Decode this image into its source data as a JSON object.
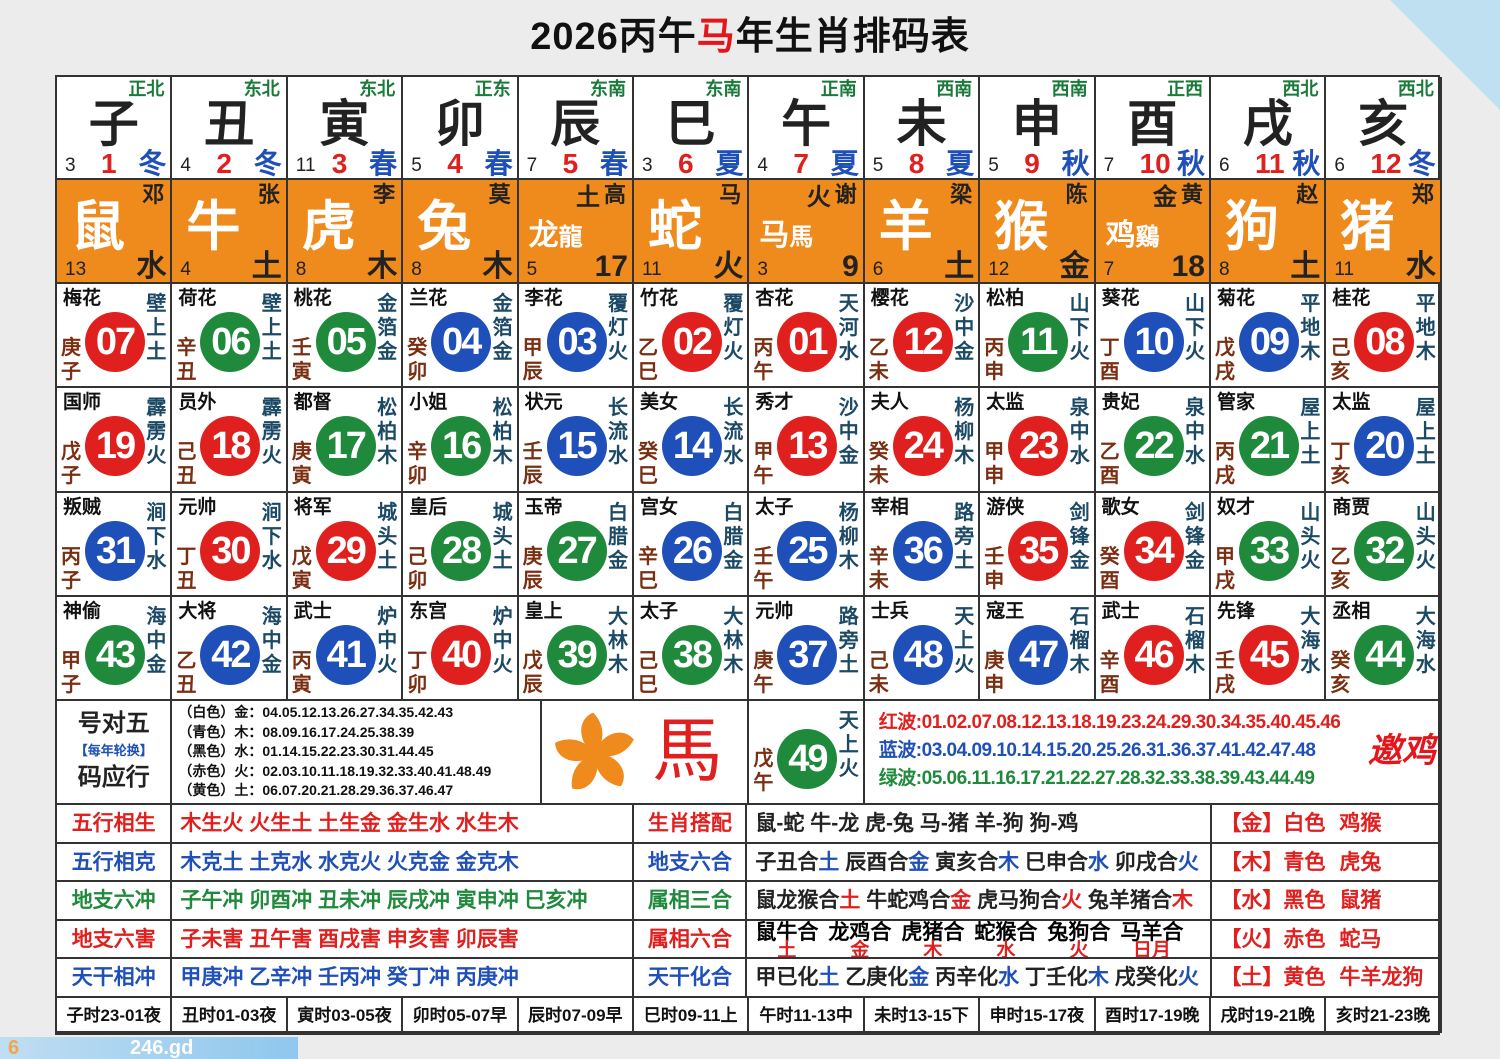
{
  "title": {
    "pre": "2026丙午",
    "hl": "马",
    "post": "年生肖排码表"
  },
  "colors": {
    "red": "#e0201f",
    "green": "#1f8a3c",
    "blue": "#1f4fb8",
    "orange": "#ef8a1c"
  },
  "branches": [
    {
      "br": "子",
      "dir": "正北",
      "ln": "3",
      "mo": "1",
      "se": "冬"
    },
    {
      "br": "丑",
      "dir": "东北",
      "ln": "4",
      "mo": "2",
      "se": "冬"
    },
    {
      "br": "寅",
      "dir": "东北",
      "ln": "11",
      "mo": "3",
      "se": "春"
    },
    {
      "br": "卯",
      "dir": "正东",
      "ln": "5",
      "mo": "4",
      "se": "春"
    },
    {
      "br": "辰",
      "dir": "东南",
      "ln": "7",
      "mo": "5",
      "se": "春"
    },
    {
      "br": "巳",
      "dir": "东南",
      "ln": "3",
      "mo": "6",
      "se": "夏"
    },
    {
      "br": "午",
      "dir": "正南",
      "ln": "4",
      "mo": "7",
      "se": "夏"
    },
    {
      "br": "未",
      "dir": "西南",
      "ln": "5",
      "mo": "8",
      "se": "夏"
    },
    {
      "br": "申",
      "dir": "西南",
      "ln": "5",
      "mo": "9",
      "se": "秋"
    },
    {
      "br": "酉",
      "dir": "正西",
      "ln": "7",
      "mo": "10",
      "se": "秋"
    },
    {
      "br": "戌",
      "dir": "西北",
      "ln": "6",
      "mo": "11",
      "se": "秋"
    },
    {
      "br": "亥",
      "dir": "西北",
      "ln": "6",
      "mo": "12",
      "se": "冬"
    }
  ],
  "zodiac": [
    {
      "an": "鼠",
      "sn": "邓",
      "ln": "13",
      "rv": "水"
    },
    {
      "an": "牛",
      "sn": "张",
      "ln": "4",
      "rv": "土"
    },
    {
      "an": "虎",
      "sn": "李",
      "ln": "8",
      "rv": "木"
    },
    {
      "an": "兔",
      "sn": "莫",
      "ln": "8",
      "rv": "木"
    },
    {
      "an": "龙",
      "an2": "龍",
      "sn": "高",
      "ex": "土",
      "ln": "5",
      "rv": "17"
    },
    {
      "an": "蛇",
      "sn": "马",
      "ln": "11",
      "rv": "火"
    },
    {
      "an": "马",
      "an2": "馬",
      "sn": "谢",
      "ex": "火",
      "ln": "3",
      "rv": "9"
    },
    {
      "an": "羊",
      "sn": "梁",
      "ln": "6",
      "rv": "土"
    },
    {
      "an": "猴",
      "sn": "陈",
      "ln": "12",
      "rv": "金"
    },
    {
      "an": "鸡",
      "an2": "鷄",
      "sn": "黄",
      "ex": "金",
      "ln": "7",
      "rv": "18"
    },
    {
      "an": "狗",
      "sn": "赵",
      "ln": "8",
      "rv": "土"
    },
    {
      "an": "猪",
      "sn": "郑",
      "ln": "11",
      "rv": "水"
    }
  ],
  "number_rows": [
    [
      [
        "梅花",
        "07",
        "庚子",
        "壁上土",
        "red"
      ],
      [
        "荷花",
        "06",
        "辛丑",
        "壁上土",
        "green"
      ],
      [
        "桃花",
        "05",
        "壬寅",
        "金箔金",
        "green"
      ],
      [
        "兰花",
        "04",
        "癸卯",
        "金箔金",
        "blue"
      ],
      [
        "李花",
        "03",
        "甲辰",
        "覆灯火",
        "blue"
      ],
      [
        "竹花",
        "02",
        "乙巳",
        "覆灯火",
        "red"
      ],
      [
        "杏花",
        "01",
        "丙午",
        "天河水",
        "red"
      ],
      [
        "樱花",
        "12",
        "乙未",
        "沙中金",
        "red"
      ],
      [
        "松柏",
        "11",
        "丙申",
        "山下火",
        "green"
      ],
      [
        "葵花",
        "10",
        "丁酉",
        "山下火",
        "blue"
      ],
      [
        "菊花",
        "09",
        "戊戌",
        "平地木",
        "blue"
      ],
      [
        "桂花",
        "08",
        "己亥",
        "平地木",
        "red"
      ]
    ],
    [
      [
        "国师",
        "19",
        "戊子",
        "霹雳火",
        "red"
      ],
      [
        "员外",
        "18",
        "己丑",
        "霹雳火",
        "red"
      ],
      [
        "都督",
        "17",
        "庚寅",
        "松柏木",
        "green"
      ],
      [
        "小姐",
        "16",
        "辛卯",
        "松柏木",
        "green"
      ],
      [
        "状元",
        "15",
        "壬辰",
        "长流水",
        "blue"
      ],
      [
        "美女",
        "14",
        "癸巳",
        "长流水",
        "blue"
      ],
      [
        "秀才",
        "13",
        "甲午",
        "沙中金",
        "red"
      ],
      [
        "夫人",
        "24",
        "癸未",
        "杨柳木",
        "red"
      ],
      [
        "太监",
        "23",
        "甲申",
        "泉中水",
        "red"
      ],
      [
        "贵妃",
        "22",
        "乙酉",
        "泉中水",
        "green"
      ],
      [
        "管家",
        "21",
        "丙戌",
        "屋上土",
        "green"
      ],
      [
        "太监",
        "20",
        "丁亥",
        "屋上土",
        "blue"
      ]
    ],
    [
      [
        "叛贼",
        "31",
        "丙子",
        "涧下水",
        "blue"
      ],
      [
        "元帅",
        "30",
        "丁丑",
        "涧下水",
        "red"
      ],
      [
        "将军",
        "29",
        "戊寅",
        "城头土",
        "red"
      ],
      [
        "皇后",
        "28",
        "己卯",
        "城头土",
        "green"
      ],
      [
        "玉帝",
        "27",
        "庚辰",
        "白腊金",
        "green"
      ],
      [
        "宫女",
        "26",
        "辛巳",
        "白腊金",
        "blue"
      ],
      [
        "太子",
        "25",
        "壬午",
        "杨柳木",
        "blue"
      ],
      [
        "宰相",
        "36",
        "辛未",
        "路旁土",
        "blue"
      ],
      [
        "游侠",
        "35",
        "壬申",
        "剑锋金",
        "red"
      ],
      [
        "歌女",
        "34",
        "癸酉",
        "剑锋金",
        "red"
      ],
      [
        "奴才",
        "33",
        "甲戌",
        "山头火",
        "green"
      ],
      [
        "商贾",
        "32",
        "乙亥",
        "山头火",
        "green"
      ]
    ],
    [
      [
        "神偷",
        "43",
        "甲子",
        "海中金",
        "green"
      ],
      [
        "大将",
        "42",
        "乙丑",
        "海中金",
        "blue"
      ],
      [
        "武士",
        "41",
        "丙寅",
        "炉中火",
        "blue"
      ],
      [
        "东宫",
        "40",
        "丁卯",
        "炉中火",
        "red"
      ],
      [
        "皇上",
        "39",
        "戊辰",
        "大林木",
        "green"
      ],
      [
        "太子",
        "38",
        "己巳",
        "大林木",
        "green"
      ],
      [
        "元帅",
        "37",
        "庚午",
        "路旁土",
        "blue"
      ],
      [
        "士兵",
        "48",
        "己未",
        "天上火",
        "blue"
      ],
      [
        "寇王",
        "47",
        "庚申",
        "石榴木",
        "blue"
      ],
      [
        "武士",
        "46",
        "辛酉",
        "石榴木",
        "red"
      ],
      [
        "先锋",
        "45",
        "壬戌",
        "大海水",
        "red"
      ],
      [
        "丞相",
        "44",
        "癸亥",
        "大海水",
        "green"
      ]
    ]
  ],
  "legend": {
    "left": {
      "l1a": "号",
      "l1b": "对",
      "l1c": "五",
      "note": "【每年轮换】",
      "l3a": "码",
      "l3b": "应",
      "l3c": "行"
    },
    "elements": [
      "（白色）金：04.05.12.13.26.27.34.35.42.43",
      "（青色）木：08.09.16.17.24.25.38.39",
      "（黑色）水：01.14.15.22.23.30.31.44.45",
      "（赤色）火：02.03.10.11.18.19.32.33.40.41.48.49",
      "（黄色）土：06.07.20.21.28.29.36.37.46.47"
    ],
    "horse_char": "馬",
    "n49": {
      "num": "49",
      "gz": "戊午",
      "ny": "天上火",
      "color": "green"
    },
    "waves": [
      {
        "t": "红波:01.02.07.08.12.13.18.19.23.24.29.30.34.35.40.45.46",
        "c": "#e0201f"
      },
      {
        "t": "蓝波:03.04.09.10.14.15.20.25.26.31.36.37.41.42.47.48",
        "c": "#1f4fb8"
      },
      {
        "t": "绿波:05.06.11.16.17.21.22.27.28.32.33.38.39.43.44.49",
        "c": "#1f8a3c"
      }
    ],
    "logo_text": "邀鸡"
  },
  "bottom": [
    {
      "label": "五行相生",
      "color": "#e0201f",
      "text": "木生火 火生土 土生金 金生水 水生木",
      "label2": "生肖搭配",
      "color2": "#e0201f",
      "segs": [
        {
          "t": "鼠-蛇 牛-龙 虎-兔 马-猪 羊-狗 狗-鸡",
          "c": "#222"
        }
      ],
      "right": {
        "a": "【金】白色",
        "b": "鸡猴"
      }
    },
    {
      "label": "五行相克",
      "color": "#1f4fb8",
      "text": "木克土 土克水 水克火 火克金 金克木",
      "label2": "地支六合",
      "color2": "#1f4fb8",
      "segs": [
        {
          "t": "子丑合",
          "c": "#222"
        },
        {
          "t": "土",
          "c": "#1f4fb8"
        },
        {
          "t": " 辰酉合",
          "c": "#222"
        },
        {
          "t": "金",
          "c": "#1f4fb8"
        },
        {
          "t": " 寅亥合",
          "c": "#222"
        },
        {
          "t": "木",
          "c": "#1f4fb8"
        },
        {
          "t": " 巳申合",
          "c": "#222"
        },
        {
          "t": "水",
          "c": "#1f4fb8"
        },
        {
          "t": " 卯戌合",
          "c": "#222"
        },
        {
          "t": "火",
          "c": "#1f4fb8"
        }
      ],
      "right": {
        "a": "【木】青色",
        "b": "虎兔"
      }
    },
    {
      "label": "地支六冲",
      "color": "#1f8a3c",
      "text": "子午冲 卯酉冲 丑未冲 辰戌冲 寅申冲 巳亥冲",
      "label2": "属相三合",
      "color2": "#1f8a3c",
      "segs": [
        {
          "t": "鼠龙猴合",
          "c": "#222"
        },
        {
          "t": "土",
          "c": "#e0201f"
        },
        {
          "t": " 牛蛇鸡合",
          "c": "#222"
        },
        {
          "t": "金",
          "c": "#e0201f"
        },
        {
          "t": " 虎马狗合",
          "c": "#222"
        },
        {
          "t": "火",
          "c": "#e0201f"
        },
        {
          "t": " 兔羊猪合",
          "c": "#222"
        },
        {
          "t": "木",
          "c": "#e0201f"
        }
      ],
      "right": {
        "a": "【水】黑色",
        "b": "鼠猪"
      }
    },
    {
      "label": "地支六害",
      "color": "#e0201f",
      "text": "子未害 丑午害 酉戌害 申亥害 卯辰害",
      "label2": "属相六合",
      "color2": "#e0201f",
      "pairs": [
        {
          "p": "鼠牛合",
          "e": "土"
        },
        {
          "p": "龙鸡合",
          "e": "金"
        },
        {
          "p": "虎猪合",
          "e": "木"
        },
        {
          "p": "蛇猴合",
          "e": "水"
        },
        {
          "p": "兔狗合",
          "e": "火"
        },
        {
          "p": "马羊合",
          "e": "日月"
        }
      ],
      "right": {
        "a": "【火】赤色",
        "b": "蛇马"
      }
    },
    {
      "label": "天干相冲",
      "color": "#1f4fb8",
      "text": "甲庚冲 乙辛冲 壬丙冲 癸丁冲 丙庚冲",
      "label2": "天干化合",
      "color2": "#1f4fb8",
      "segs": [
        {
          "t": "甲已化",
          "c": "#222"
        },
        {
          "t": "土",
          "c": "#1f4fb8"
        },
        {
          "t": " 乙庚化",
          "c": "#222"
        },
        {
          "t": "金",
          "c": "#1f4fb8"
        },
        {
          "t": " 丙辛化",
          "c": "#222"
        },
        {
          "t": "水",
          "c": "#1f4fb8"
        },
        {
          "t": " 丁壬化",
          "c": "#222"
        },
        {
          "t": "木",
          "c": "#1f4fb8"
        },
        {
          "t": " 戌癸化",
          "c": "#222"
        },
        {
          "t": "火",
          "c": "#1f4fb8"
        }
      ],
      "right": {
        "a": "【土】黄色",
        "b": "牛羊龙狗"
      }
    }
  ],
  "hours": [
    "子时23-01夜",
    "丑时01-03夜",
    "寅时03-05夜",
    "卯时05-07早",
    "辰时07-09早",
    "巳时09-11上",
    "午时11-13中",
    "未时13-15下",
    "申时15-17夜",
    "酉时17-19晚",
    "戌时19-21晚",
    "亥时21-23晚"
  ],
  "watermark": {
    "logo": "6",
    "text": "246.gd"
  }
}
